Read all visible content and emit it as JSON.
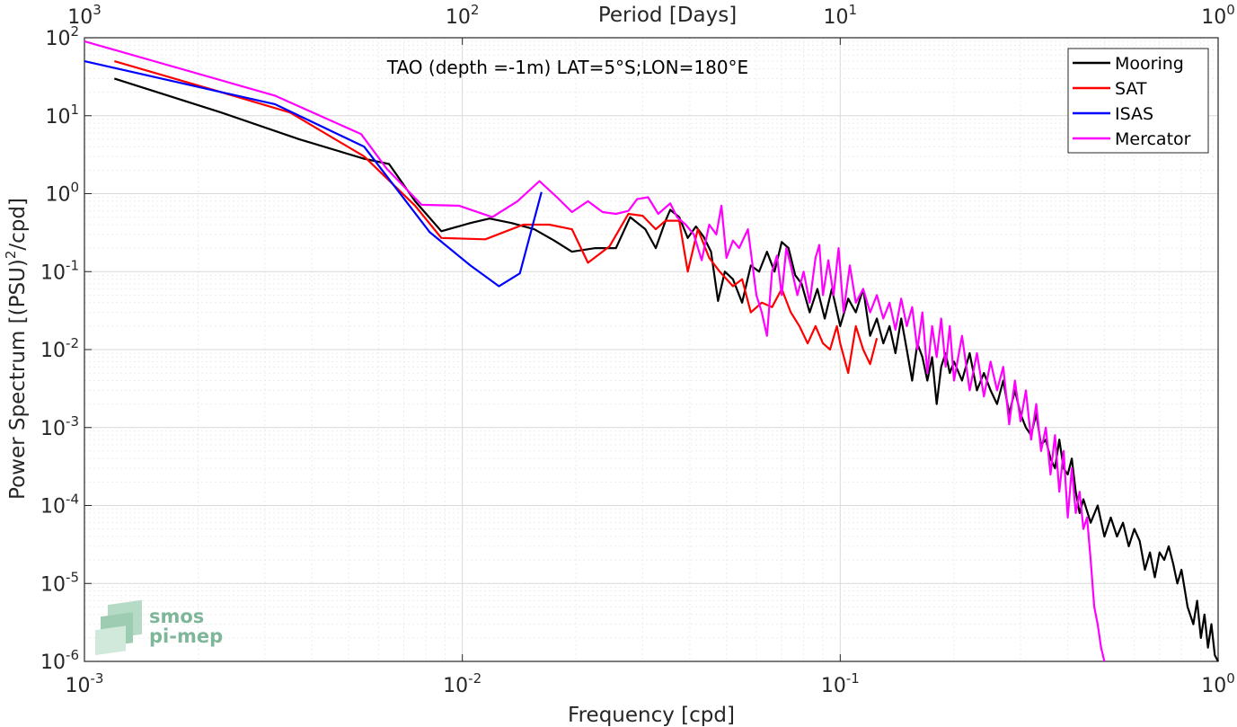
{
  "chart_data": {
    "type": "line",
    "title": "TAO (depth =-1m) LAT=5°S;LON=180°E",
    "xlabel": "Frequency [cpd]",
    "ylabel": "Power Spectrum [(PSU)",
    "ylabel_sup": "2",
    "ylabel_tail": "/cpd]",
    "top_xlabel": "Period [Days]",
    "xscale": "log",
    "yscale": "log",
    "xlim": [
      0.001,
      1
    ],
    "ylim": [
      1e-06,
      100
    ],
    "grid": true,
    "legend_position": "top-right",
    "x_ticks": [
      {
        "value": 0.001,
        "base": "10",
        "exp": "-3"
      },
      {
        "value": 0.01,
        "base": "10",
        "exp": "-2"
      },
      {
        "value": 0.1,
        "base": "10",
        "exp": "-1"
      },
      {
        "value": 1,
        "base": "10",
        "exp": "0"
      }
    ],
    "y_ticks": [
      {
        "value": 100,
        "base": "10",
        "exp": "2"
      },
      {
        "value": 10,
        "base": "10",
        "exp": "1"
      },
      {
        "value": 1,
        "base": "10",
        "exp": "0"
      },
      {
        "value": 0.1,
        "base": "10",
        "exp": "-1"
      },
      {
        "value": 0.01,
        "base": "10",
        "exp": "-2"
      },
      {
        "value": 0.001,
        "base": "10",
        "exp": "-3"
      },
      {
        "value": 0.0001,
        "base": "10",
        "exp": "-4"
      },
      {
        "value": 1e-05,
        "base": "10",
        "exp": "-5"
      },
      {
        "value": 1e-06,
        "base": "10",
        "exp": "-6"
      }
    ],
    "top_ticks": [
      {
        "freq": 0.001,
        "base": "10",
        "exp": "3"
      },
      {
        "freq": 0.01,
        "base": "10",
        "exp": "2"
      },
      {
        "freq": 0.1,
        "base": "10",
        "exp": "1"
      },
      {
        "freq": 1,
        "base": "10",
        "exp": "0"
      }
    ],
    "series": [
      {
        "name": "Mooring",
        "color": "#000000",
        "points": [
          [
            0.0012,
            30
          ],
          [
            0.0023,
            11
          ],
          [
            0.0037,
            5
          ],
          [
            0.0055,
            2.8
          ],
          [
            0.0064,
            2.4
          ],
          [
            0.0075,
            0.8
          ],
          [
            0.0088,
            0.33
          ],
          [
            0.0105,
            0.42
          ],
          [
            0.0118,
            0.48
          ],
          [
            0.0135,
            0.42
          ],
          [
            0.0155,
            0.35
          ],
          [
            0.0175,
            0.25
          ],
          [
            0.0195,
            0.18
          ],
          [
            0.0225,
            0.2
          ],
          [
            0.0255,
            0.2
          ],
          [
            0.0278,
            0.5
          ],
          [
            0.0305,
            0.35
          ],
          [
            0.0325,
            0.2
          ],
          [
            0.0345,
            0.45
          ],
          [
            0.0355,
            0.62
          ],
          [
            0.0375,
            0.5
          ],
          [
            0.0395,
            0.27
          ],
          [
            0.0415,
            0.38
          ],
          [
            0.0435,
            0.28
          ],
          [
            0.0455,
            0.18
          ],
          [
            0.0475,
            0.042
          ],
          [
            0.0495,
            0.1
          ],
          [
            0.052,
            0.08
          ],
          [
            0.055,
            0.04
          ],
          [
            0.058,
            0.12
          ],
          [
            0.061,
            0.1
          ],
          [
            0.064,
            0.18
          ],
          [
            0.067,
            0.1
          ],
          [
            0.07,
            0.24
          ],
          [
            0.073,
            0.2
          ],
          [
            0.076,
            0.09
          ],
          [
            0.079,
            0.07
          ],
          [
            0.083,
            0.03
          ],
          [
            0.087,
            0.06
          ],
          [
            0.091,
            0.025
          ],
          [
            0.095,
            0.06
          ],
          [
            0.1,
            0.02
          ],
          [
            0.105,
            0.045
          ],
          [
            0.11,
            0.03
          ],
          [
            0.115,
            0.06
          ],
          [
            0.12,
            0.015
          ],
          [
            0.125,
            0.025
          ],
          [
            0.13,
            0.012
          ],
          [
            0.135,
            0.02
          ],
          [
            0.14,
            0.009
          ],
          [
            0.145,
            0.025
          ],
          [
            0.15,
            0.01
          ],
          [
            0.155,
            0.004
          ],
          [
            0.16,
            0.012
          ],
          [
            0.165,
            0.008
          ],
          [
            0.17,
            0.004
          ],
          [
            0.175,
            0.008
          ],
          [
            0.18,
            0.002
          ],
          [
            0.185,
            0.006
          ],
          [
            0.19,
            0.009
          ],
          [
            0.195,
            0.005
          ],
          [
            0.2,
            0.007
          ],
          [
            0.21,
            0.004
          ],
          [
            0.22,
            0.009
          ],
          [
            0.23,
            0.003
          ],
          [
            0.24,
            0.005
          ],
          [
            0.25,
            0.003
          ],
          [
            0.26,
            0.002
          ],
          [
            0.27,
            0.004
          ],
          [
            0.28,
            0.0015
          ],
          [
            0.29,
            0.003
          ],
          [
            0.3,
            0.0015
          ],
          [
            0.31,
            0.001
          ],
          [
            0.32,
            0.0008
          ],
          [
            0.33,
            0.0015
          ],
          [
            0.34,
            0.0006
          ],
          [
            0.35,
            0.0007
          ],
          [
            0.36,
            0.0004
          ],
          [
            0.37,
            0.0003
          ],
          [
            0.38,
            0.0007
          ],
          [
            0.39,
            0.0003
          ],
          [
            0.4,
            0.00025
          ],
          [
            0.41,
            0.0004
          ],
          [
            0.42,
            0.00015
          ],
          [
            0.43,
            8e-05
          ],
          [
            0.44,
            0.00012
          ],
          [
            0.46,
            6e-05
          ],
          [
            0.48,
            0.0001
          ],
          [
            0.5,
            4e-05
          ],
          [
            0.52,
            7e-05
          ],
          [
            0.54,
            4e-05
          ],
          [
            0.56,
            6e-05
          ],
          [
            0.58,
            3e-05
          ],
          [
            0.6,
            5e-05
          ],
          [
            0.62,
            3.5e-05
          ],
          [
            0.64,
            1.5e-05
          ],
          [
            0.66,
            2.5e-05
          ],
          [
            0.68,
            1.2e-05
          ],
          [
            0.7,
            2.5e-05
          ],
          [
            0.72,
            2e-05
          ],
          [
            0.74,
            3e-05
          ],
          [
            0.76,
            1.8e-05
          ],
          [
            0.78,
            1e-05
          ],
          [
            0.8,
            1.5e-05
          ],
          [
            0.83,
            5e-06
          ],
          [
            0.86,
            3e-06
          ],
          [
            0.88,
            6e-06
          ],
          [
            0.9,
            2e-06
          ],
          [
            0.92,
            4e-06
          ],
          [
            0.94,
            1.5e-06
          ],
          [
            0.96,
            3e-06
          ],
          [
            0.98,
            1.2e-06
          ],
          [
            1.0,
            1e-06
          ]
        ]
      },
      {
        "name": "SAT",
        "color": "#ff0000",
        "points": [
          [
            0.0012,
            50
          ],
          [
            0.0023,
            20
          ],
          [
            0.0035,
            11
          ],
          [
            0.0055,
            3
          ],
          [
            0.0075,
            0.7
          ],
          [
            0.0088,
            0.27
          ],
          [
            0.0115,
            0.26
          ],
          [
            0.0145,
            0.4
          ],
          [
            0.017,
            0.4
          ],
          [
            0.0195,
            0.35
          ],
          [
            0.0215,
            0.13
          ],
          [
            0.0245,
            0.21
          ],
          [
            0.0275,
            0.55
          ],
          [
            0.03,
            0.52
          ],
          [
            0.0325,
            0.35
          ],
          [
            0.0345,
            0.45
          ],
          [
            0.0375,
            0.45
          ],
          [
            0.0395,
            0.1
          ],
          [
            0.042,
            0.35
          ],
          [
            0.045,
            0.15
          ],
          [
            0.048,
            0.1
          ],
          [
            0.052,
            0.065
          ],
          [
            0.055,
            0.08
          ],
          [
            0.058,
            0.03
          ],
          [
            0.062,
            0.04
          ],
          [
            0.066,
            0.035
          ],
          [
            0.07,
            0.06
          ],
          [
            0.074,
            0.03
          ],
          [
            0.078,
            0.02
          ],
          [
            0.082,
            0.012
          ],
          [
            0.086,
            0.02
          ],
          [
            0.09,
            0.012
          ],
          [
            0.094,
            0.01
          ],
          [
            0.098,
            0.02
          ],
          [
            0.1,
            0.012
          ],
          [
            0.105,
            0.005
          ],
          [
            0.11,
            0.02
          ],
          [
            0.115,
            0.01
          ],
          [
            0.12,
            0.0065
          ],
          [
            0.125,
            0.014
          ]
        ]
      },
      {
        "name": "ISAS",
        "color": "#0000ff",
        "points": [
          [
            0.001,
            50
          ],
          [
            0.0032,
            14
          ],
          [
            0.0055,
            4
          ],
          [
            0.0082,
            0.32
          ],
          [
            0.0105,
            0.12
          ],
          [
            0.0125,
            0.065
          ],
          [
            0.0142,
            0.095
          ],
          [
            0.0162,
            1.05
          ]
        ]
      },
      {
        "name": "Mercator",
        "color": "#ff00ff",
        "points": [
          [
            0.001,
            90
          ],
          [
            0.0032,
            18
          ],
          [
            0.0054,
            5.8
          ],
          [
            0.0063,
            2.1
          ],
          [
            0.0078,
            0.72
          ],
          [
            0.0098,
            0.7
          ],
          [
            0.012,
            0.5
          ],
          [
            0.014,
            0.8
          ],
          [
            0.016,
            1.45
          ],
          [
            0.0178,
            0.9
          ],
          [
            0.0195,
            0.58
          ],
          [
            0.0215,
            0.8
          ],
          [
            0.0235,
            0.58
          ],
          [
            0.0255,
            0.55
          ],
          [
            0.0275,
            0.6
          ],
          [
            0.029,
            0.85
          ],
          [
            0.031,
            0.9
          ],
          [
            0.033,
            0.55
          ],
          [
            0.0355,
            0.75
          ],
          [
            0.037,
            0.5
          ],
          [
            0.039,
            0.4
          ],
          [
            0.041,
            0.3
          ],
          [
            0.043,
            0.14
          ],
          [
            0.045,
            0.4
          ],
          [
            0.047,
            0.3
          ],
          [
            0.0485,
            0.7
          ],
          [
            0.05,
            0.15
          ],
          [
            0.052,
            0.25
          ],
          [
            0.054,
            0.2
          ],
          [
            0.057,
            0.35
          ],
          [
            0.06,
            0.05
          ],
          [
            0.062,
            0.03
          ],
          [
            0.064,
            0.015
          ],
          [
            0.066,
            0.1
          ],
          [
            0.068,
            0.16
          ],
          [
            0.07,
            0.05
          ],
          [
            0.072,
            0.2
          ],
          [
            0.074,
            0.12
          ],
          [
            0.077,
            0.05
          ],
          [
            0.08,
            0.1
          ],
          [
            0.083,
            0.04
          ],
          [
            0.086,
            0.15
          ],
          [
            0.088,
            0.22
          ],
          [
            0.09,
            0.05
          ],
          [
            0.093,
            0.14
          ],
          [
            0.096,
            0.05
          ],
          [
            0.099,
            0.2
          ],
          [
            0.102,
            0.03
          ],
          [
            0.106,
            0.12
          ],
          [
            0.11,
            0.04
          ],
          [
            0.115,
            0.06
          ],
          [
            0.12,
            0.03
          ],
          [
            0.125,
            0.05
          ],
          [
            0.13,
            0.025
          ],
          [
            0.135,
            0.04
          ],
          [
            0.14,
            0.018
          ],
          [
            0.145,
            0.045
          ],
          [
            0.15,
            0.02
          ],
          [
            0.155,
            0.035
          ],
          [
            0.16,
            0.01
          ],
          [
            0.165,
            0.03
          ],
          [
            0.17,
            0.005
          ],
          [
            0.175,
            0.02
          ],
          [
            0.18,
            0.008
          ],
          [
            0.185,
            0.025
          ],
          [
            0.19,
            0.006
          ],
          [
            0.195,
            0.02
          ],
          [
            0.2,
            0.004
          ],
          [
            0.21,
            0.015
          ],
          [
            0.22,
            0.003
          ],
          [
            0.23,
            0.009
          ],
          [
            0.24,
            0.0025
          ],
          [
            0.25,
            0.007
          ],
          [
            0.26,
            0.003
          ],
          [
            0.27,
            0.006
          ],
          [
            0.28,
            0.0011
          ],
          [
            0.29,
            0.004
          ],
          [
            0.3,
            0.0012
          ],
          [
            0.31,
            0.003
          ],
          [
            0.32,
            0.0007
          ],
          [
            0.33,
            0.002
          ],
          [
            0.34,
            0.0005
          ],
          [
            0.35,
            0.001
          ],
          [
            0.36,
            0.00025
          ],
          [
            0.37,
            0.0008
          ],
          [
            0.38,
            0.00015
          ],
          [
            0.39,
            0.0005
          ],
          [
            0.4,
            7e-05
          ],
          [
            0.41,
            0.0003
          ],
          [
            0.42,
            8e-05
          ],
          [
            0.43,
            0.00015
          ],
          [
            0.44,
            5e-05
          ],
          [
            0.45,
            7e-05
          ],
          [
            0.46,
            2e-05
          ],
          [
            0.47,
            5e-06
          ],
          [
            0.48,
            3e-06
          ],
          [
            0.49,
            1.5e-06
          ],
          [
            0.5,
            1e-06
          ]
        ]
      }
    ]
  },
  "logo": {
    "line1": "smos",
    "line2": "pi-mep"
  }
}
